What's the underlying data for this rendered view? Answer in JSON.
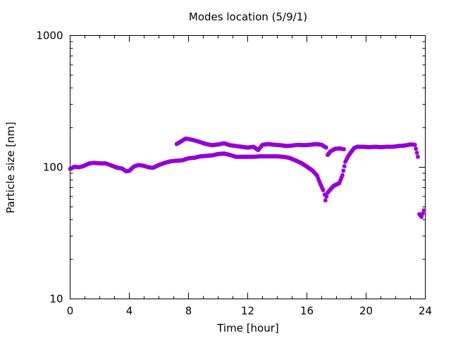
{
  "chart_data": {
    "type": "scatter",
    "title": "Modes location (5/9/1)",
    "xlabel": "Time [hour]",
    "ylabel": "Particle size [nm]",
    "xlim": [
      0,
      24
    ],
    "ylim": [
      10,
      1000
    ],
    "yscale": "log",
    "x_ticks": [
      0,
      4,
      8,
      12,
      16,
      20,
      24
    ],
    "x_tick_labels": [
      "0",
      "4",
      "8",
      "12",
      "16",
      "20",
      "24"
    ],
    "y_ticks": [
      10,
      100,
      1000
    ],
    "y_tick_labels": [
      "10",
      "100",
      "1000"
    ],
    "grid": false,
    "legend": "none",
    "marker_color": "#9400d3",
    "series": [
      {
        "points": [
          [
            0.0,
            97
          ],
          [
            0.3,
            101
          ],
          [
            0.6,
            100
          ],
          [
            0.9,
            102
          ],
          [
            1.3,
            107
          ],
          [
            1.6,
            108
          ],
          [
            2.0,
            107
          ],
          [
            2.4,
            107
          ],
          [
            2.8,
            103
          ],
          [
            3.2,
            99
          ],
          [
            3.5,
            98
          ],
          [
            3.8,
            93
          ],
          [
            4.0,
            94
          ],
          [
            4.3,
            101
          ],
          [
            4.6,
            104
          ],
          [
            4.9,
            103
          ],
          [
            5.3,
            100
          ],
          [
            5.6,
            99
          ],
          [
            6.0,
            104
          ],
          [
            6.4,
            108
          ],
          [
            6.8,
            111
          ],
          [
            7.2,
            112
          ],
          [
            7.6,
            113
          ],
          [
            8.0,
            117
          ],
          [
            8.4,
            118
          ],
          [
            8.8,
            121
          ],
          [
            9.2,
            122
          ],
          [
            9.6,
            123
          ],
          [
            10.0,
            126
          ],
          [
            10.4,
            127
          ],
          [
            10.8,
            124
          ],
          [
            11.2,
            120
          ],
          [
            11.6,
            120
          ],
          [
            12.0,
            120
          ],
          [
            12.4,
            120
          ],
          [
            12.8,
            121
          ],
          [
            13.2,
            121
          ],
          [
            13.6,
            121
          ],
          [
            14.0,
            121
          ],
          [
            14.4,
            120
          ],
          [
            14.8,
            118
          ],
          [
            15.2,
            113
          ],
          [
            15.6,
            108
          ],
          [
            16.0,
            101
          ],
          [
            16.4,
            94
          ],
          [
            16.7,
            86
          ],
          [
            16.9,
            75
          ],
          [
            17.1,
            67
          ],
          [
            17.2,
            62
          ],
          [
            17.25,
            56
          ],
          [
            17.4,
            64
          ],
          [
            17.6,
            68
          ],
          [
            17.8,
            72
          ],
          [
            18.0,
            74
          ],
          [
            18.2,
            76
          ],
          [
            18.4,
            87
          ],
          [
            18.6,
            110
          ],
          [
            18.8,
            122
          ],
          [
            19.0,
            131
          ],
          [
            19.2,
            140
          ],
          [
            19.4,
            143
          ],
          [
            19.8,
            143
          ],
          [
            20.2,
            142
          ],
          [
            20.6,
            143
          ],
          [
            21.0,
            142
          ],
          [
            21.4,
            143
          ],
          [
            21.8,
            143
          ],
          [
            22.2,
            145
          ],
          [
            22.6,
            146
          ],
          [
            23.0,
            149
          ],
          [
            23.3,
            148
          ],
          [
            23.5,
            120
          ],
          [
            23.6,
            44
          ],
          [
            23.75,
            42
          ],
          [
            23.9,
            47
          ]
        ]
      },
      {
        "points": [
          [
            7.2,
            150
          ],
          [
            7.5,
            157
          ],
          [
            7.8,
            165
          ],
          [
            8.1,
            163
          ],
          [
            8.4,
            160
          ],
          [
            8.8,
            155
          ],
          [
            9.2,
            150
          ],
          [
            9.6,
            147
          ],
          [
            10.0,
            149
          ],
          [
            10.4,
            152
          ],
          [
            10.8,
            147
          ],
          [
            11.2,
            145
          ],
          [
            11.6,
            143
          ],
          [
            12.0,
            141
          ],
          [
            12.4,
            143
          ],
          [
            12.7,
            135
          ],
          [
            13.0,
            148
          ],
          [
            13.4,
            150
          ],
          [
            13.8,
            148
          ],
          [
            14.2,
            147
          ],
          [
            14.6,
            145
          ],
          [
            15.0,
            146
          ],
          [
            15.4,
            148
          ],
          [
            15.8,
            147
          ],
          [
            16.2,
            148
          ],
          [
            16.6,
            150
          ],
          [
            17.0,
            148
          ],
          [
            17.3,
            141
          ],
          [
            17.4,
            124
          ],
          [
            17.6,
            132
          ],
          [
            17.9,
            138
          ],
          [
            18.2,
            139
          ],
          [
            18.5,
            137
          ]
        ]
      }
    ]
  }
}
